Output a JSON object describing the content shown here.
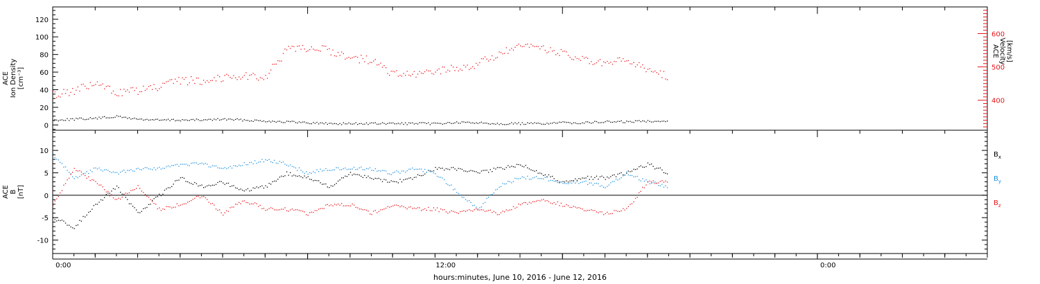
{
  "xlabel": "hours:minutes, June 10, 2016 - June 12, 2016",
  "x_ticks": [
    "0:00",
    "12:00",
    "0:00"
  ],
  "colors": {
    "black": "#000000",
    "red": "#e8141a",
    "blue": "#1a8fe0"
  },
  "chart_data": [
    {
      "type": "scatter",
      "title": "",
      "ylabel_left": [
        "ACE",
        "Ion Density",
        "[cm⁻³]"
      ],
      "ylabel_right": [
        "ACE",
        "Velocity",
        "[km/s]"
      ],
      "xlim_hours": [
        0,
        44
      ],
      "ylim_left": [
        -6,
        134
      ],
      "ylim_right": [
        310,
        680
      ],
      "yticks_left": [
        "0",
        "20",
        "40",
        "60",
        "80",
        "100",
        "120"
      ],
      "yticks_right": [
        "400",
        "500",
        "600"
      ],
      "series": [
        {
          "name": "",
          "axis": "left",
          "color": "black",
          "x": [
            0.0,
            1.0,
            2.0,
            3.0,
            4.0,
            5.0,
            6.0,
            7.0,
            8.0,
            9.0,
            10.0,
            11.0,
            12.0,
            13.0,
            14.0,
            15.0,
            16.0,
            17.0,
            18.0,
            19.0,
            20.0,
            21.0,
            22.0,
            23.0,
            24.0,
            25.0,
            26.0,
            27.0,
            28.0,
            29.0
          ],
          "y": [
            6,
            7,
            8,
            10,
            7,
            6,
            6,
            6,
            7,
            6,
            5,
            4,
            3,
            2,
            2,
            2,
            2,
            2,
            2,
            3,
            3,
            2,
            2,
            2,
            3,
            3,
            4,
            4,
            5,
            5
          ]
        },
        {
          "name": "",
          "axis": "right",
          "color": "red",
          "x": [
            0.0,
            1.0,
            2.0,
            3.0,
            4.0,
            5.0,
            6.0,
            7.0,
            8.0,
            9.0,
            10.0,
            11.0,
            12.0,
            13.0,
            14.0,
            15.0,
            16.0,
            17.0,
            18.0,
            19.0,
            20.0,
            21.0,
            22.0,
            23.0,
            24.0,
            25.0,
            26.0,
            27.0,
            28.0,
            29.0
          ],
          "y": [
            420,
            430,
            450,
            425,
            430,
            440,
            460,
            460,
            470,
            475,
            470,
            550,
            560,
            550,
            530,
            520,
            480,
            475,
            490,
            495,
            510,
            540,
            560,
            560,
            540,
            520,
            510,
            520,
            495,
            470
          ]
        }
      ]
    },
    {
      "type": "scatter",
      "title": "",
      "ylabel_left": [
        "ACE",
        "B",
        "[nT]"
      ],
      "xlim_hours": [
        0,
        44
      ],
      "ylim": [
        -13,
        14.5
      ],
      "yticks": [
        "-10",
        "-5",
        "0",
        "5",
        "10"
      ],
      "zero_line": true,
      "legend": [
        "B",
        "B",
        "B"
      ],
      "legend_subscripts": [
        "x",
        "y",
        "z"
      ],
      "legend_colors": [
        "black",
        "blue",
        "red"
      ],
      "series": [
        {
          "name": "Bx",
          "color": "black",
          "x": [
            0.0,
            1.0,
            2.0,
            3.0,
            4.0,
            5.0,
            6.0,
            7.0,
            8.0,
            9.0,
            10.0,
            11.0,
            12.0,
            13.0,
            14.0,
            15.0,
            16.0,
            17.0,
            18.0,
            19.0,
            20.0,
            21.0,
            22.0,
            23.0,
            24.0,
            25.0,
            26.0,
            27.0,
            28.0,
            29.0
          ],
          "y": [
            -5,
            -7,
            -2,
            2,
            -4,
            0,
            4,
            2,
            3,
            1,
            2,
            5,
            4,
            2,
            5,
            4,
            3,
            4,
            6,
            6,
            5,
            6,
            7,
            5,
            3,
            4,
            4,
            5,
            7,
            5
          ]
        },
        {
          "name": "By",
          "color": "blue",
          "x": [
            0.0,
            1.0,
            2.0,
            3.0,
            4.0,
            5.0,
            6.0,
            7.0,
            8.0,
            9.0,
            10.0,
            11.0,
            12.0,
            13.0,
            14.0,
            15.0,
            16.0,
            17.0,
            18.0,
            19.0,
            20.0,
            21.0,
            22.0,
            23.0,
            24.0,
            25.0,
            26.0,
            27.0,
            28.0,
            29.0
          ],
          "y": [
            9,
            4,
            6,
            5,
            6,
            6,
            7,
            7,
            6,
            7,
            8,
            7,
            5,
            6,
            6,
            6,
            5,
            6,
            5,
            1,
            -3,
            2,
            4,
            4,
            3,
            3,
            2,
            5,
            3,
            2
          ]
        },
        {
          "name": "Bz",
          "color": "red",
          "x": [
            0.0,
            1.0,
            2.0,
            3.0,
            4.0,
            5.0,
            6.0,
            7.0,
            8.0,
            9.0,
            10.0,
            11.0,
            12.0,
            13.0,
            14.0,
            15.0,
            16.0,
            17.0,
            18.0,
            19.0,
            20.0,
            21.0,
            22.0,
            23.0,
            24.0,
            25.0,
            26.0,
            27.0,
            28.0,
            29.0
          ],
          "y": [
            -2,
            6,
            3,
            -1,
            2,
            -3,
            -2,
            0,
            -4,
            -1,
            -3,
            -3,
            -4,
            -2,
            -2,
            -4,
            -2,
            -3,
            -3,
            -4,
            -3,
            -4,
            -2,
            -1,
            -2,
            -3,
            -4,
            -3,
            3,
            3
          ]
        }
      ]
    }
  ]
}
